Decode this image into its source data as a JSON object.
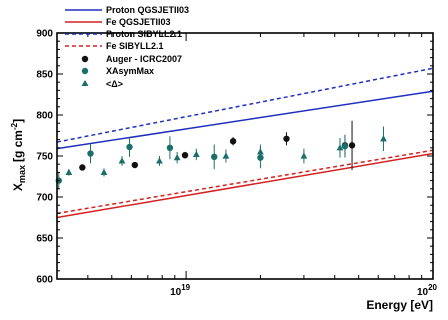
{
  "chart_data": {
    "type": "scatter",
    "title": "",
    "xlabel": "Energy [eV]",
    "ylabel_main": "X",
    "ylabel_sub": "max",
    "ylabel_unit": "[g cm",
    "ylabel_exp": "-2",
    "ylabel_close": "]",
    "xscale": "log",
    "xlim": [
      3e+18,
      1e+20
    ],
    "ylim": [
      600,
      900
    ],
    "yticks": [
      600,
      650,
      700,
      750,
      800,
      850,
      900
    ],
    "xtick_labels": [
      {
        "value": 1e+19,
        "base": "10",
        "exp": "19"
      },
      {
        "value": 1e+20,
        "base": "10",
        "exp": "20"
      }
    ],
    "grid": false,
    "legend_position": "top-left",
    "lines": [
      {
        "name": "Proton QGSJETII03",
        "x": [
          3e+18,
          1e+20
        ],
        "y": [
          759,
          829
        ],
        "color": "#1f2fbf",
        "dash": "solid"
      },
      {
        "name": "Fe QGSJETII03",
        "x": [
          3e+18,
          1e+20
        ],
        "y": [
          675,
          753
        ],
        "color": "#d42020",
        "dash": "solid"
      },
      {
        "name": "Proton SIBYLL2.1",
        "x": [
          3e+18,
          1e+20
        ],
        "y": [
          767,
          857
        ],
        "color": "#1f2fbf",
        "dash": "dashed"
      },
      {
        "name": "Fe SIBYLL2.1",
        "x": [
          3e+18,
          1e+20
        ],
        "y": [
          680,
          757
        ],
        "color": "#d42020",
        "dash": "dashed"
      }
    ],
    "series": [
      {
        "name": "Auger - ICRC2007",
        "marker": "circle",
        "color": "#111111",
        "points": [
          {
            "x": 3.8e+18,
            "y": 736,
            "err": 3
          },
          {
            "x": 6.2e+18,
            "y": 739,
            "err": 3
          },
          {
            "x": 9.9e+18,
            "y": 751,
            "err": 4
          },
          {
            "x": 1.55e+19,
            "y": 768,
            "err": 5
          },
          {
            "x": 2.55e+19,
            "y": 771,
            "err": 8
          },
          {
            "x": 4.4e+19,
            "y": 763,
            "err": 12
          },
          {
            "x": 4.7e+19,
            "y": 763,
            "err": 30
          }
        ]
      },
      {
        "name": "XAsymMax",
        "marker": "circle",
        "color": "#1a6f6a",
        "points": [
          {
            "x": 3.05e+18,
            "y": 720,
            "err": 10
          },
          {
            "x": 4.1e+18,
            "y": 753,
            "err": 12
          },
          {
            "x": 5.9e+18,
            "y": 761,
            "err": 12
          },
          {
            "x": 8.6e+18,
            "y": 760,
            "err": 14
          },
          {
            "x": 1.3e+19,
            "y": 749,
            "err": 15
          },
          {
            "x": 2e+19,
            "y": 748,
            "err": 13
          },
          {
            "x": 4.4e+19,
            "y": 762,
            "err": 14
          }
        ]
      },
      {
        "name": "<Δ>",
        "marker": "triangle",
        "color": "#1a6f6a",
        "points": [
          {
            "x": 3.35e+18,
            "y": 730,
            "err": 4
          },
          {
            "x": 4.65e+18,
            "y": 730,
            "err": 5
          },
          {
            "x": 5.5e+18,
            "y": 744,
            "err": 6
          },
          {
            "x": 7.8e+18,
            "y": 744,
            "err": 6
          },
          {
            "x": 9.2e+18,
            "y": 748,
            "err": 7
          },
          {
            "x": 1.1e+19,
            "y": 752,
            "err": 7
          },
          {
            "x": 1.45e+19,
            "y": 750,
            "err": 8
          },
          {
            "x": 2e+19,
            "y": 755,
            "err": 9
          },
          {
            "x": 3e+19,
            "y": 750,
            "err": 9
          },
          {
            "x": 4.2e+19,
            "y": 760,
            "err": 12
          },
          {
            "x": 6.3e+19,
            "y": 771,
            "err": 15
          }
        ]
      }
    ]
  }
}
